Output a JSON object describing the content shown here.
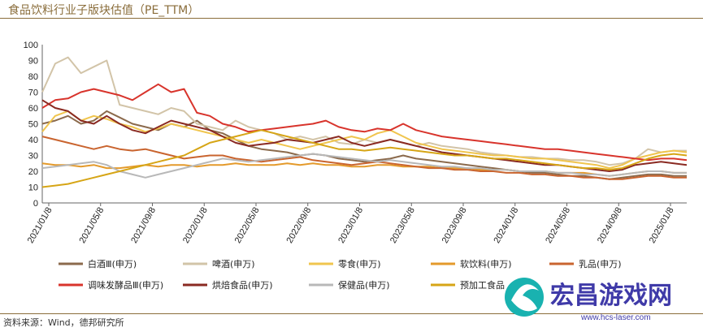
{
  "title": "食品饮料行业子版块估值（PE_TTM）",
  "source": "资料来源：Wind，德邦研究所",
  "watermark": {
    "name": "宏昌游戏网",
    "url": "www.hcs-laser.com"
  },
  "chart_data": {
    "type": "line",
    "ylim": [
      0,
      100
    ],
    "yticks": [
      0,
      10,
      20,
      30,
      40,
      50,
      60,
      70,
      80,
      90,
      100
    ],
    "xlim": [
      0,
      50
    ],
    "xticks": [
      "2021/01/8",
      "2021/05/8",
      "2021/09/8",
      "2022/01/8",
      "2022/05/8",
      "2022/09/8",
      "2023/01/8",
      "2023/05/8",
      "2023/09/8",
      "2024/01/8",
      "2024/05/8",
      "2024/09/8",
      "2025/01/8"
    ],
    "series": [
      {
        "name": "白酒Ⅲ(申万)",
        "color": "#8b6a4c",
        "values": [
          50,
          52,
          55,
          50,
          52,
          58,
          54,
          50,
          48,
          46,
          50,
          48,
          52,
          46,
          44,
          40,
          36,
          34,
          33,
          32,
          30,
          31,
          30,
          28,
          27,
          26,
          27,
          28,
          30,
          28,
          27,
          26,
          25,
          24,
          23,
          22,
          21,
          20,
          19,
          19,
          18,
          17,
          17,
          16,
          15,
          16,
          17,
          18,
          18,
          17,
          17
        ]
      },
      {
        "name": "啤酒(申万)",
        "color": "#d2c4a8",
        "values": [
          70,
          88,
          92,
          82,
          86,
          90,
          62,
          60,
          58,
          56,
          60,
          58,
          50,
          48,
          46,
          52,
          48,
          46,
          44,
          40,
          42,
          40,
          42,
          38,
          37,
          40,
          38,
          40,
          38,
          36,
          38,
          36,
          35,
          34,
          32,
          31,
          30,
          29,
          29,
          28,
          28,
          27,
          27,
          26,
          24,
          25,
          28,
          34,
          32,
          33,
          33
        ]
      },
      {
        "name": "零食(申万)",
        "color": "#f0c54e",
        "values": [
          45,
          55,
          58,
          52,
          55,
          53,
          50,
          48,
          45,
          47,
          50,
          48,
          46,
          44,
          42,
          40,
          38,
          40,
          38,
          36,
          34,
          36,
          38,
          40,
          42,
          40,
          44,
          46,
          42,
          38,
          36,
          34,
          33,
          32,
          31,
          30,
          30,
          29,
          28,
          28,
          27,
          26,
          25,
          24,
          22,
          24,
          28,
          30,
          32,
          33,
          32
        ]
      },
      {
        "name": "软饮料(申万)",
        "color": "#e49a2b",
        "values": [
          25,
          24,
          24,
          23,
          24,
          22,
          22,
          23,
          24,
          23,
          24,
          24,
          23,
          24,
          24,
          25,
          24,
          24,
          24,
          25,
          24,
          25,
          24,
          24,
          23,
          23,
          24,
          24,
          23,
          23,
          23,
          22,
          22,
          22,
          21,
          21,
          21,
          20,
          20,
          20,
          19,
          19,
          19,
          18,
          17,
          18,
          19,
          20,
          20,
          19,
          19
        ]
      },
      {
        "name": "乳品(申万)",
        "color": "#c9642f",
        "values": [
          42,
          40,
          38,
          36,
          34,
          36,
          34,
          33,
          34,
          32,
          30,
          28,
          29,
          30,
          30,
          28,
          27,
          26,
          27,
          28,
          29,
          27,
          26,
          25,
          24,
          25,
          26,
          25,
          24,
          23,
          22,
          22,
          21,
          21,
          20,
          20,
          19,
          19,
          18,
          18,
          17,
          17,
          16,
          16,
          15,
          15,
          16,
          17,
          17,
          16,
          16
        ]
      },
      {
        "name": "调味发酵品Ⅲ(申万)",
        "color": "#d8342c",
        "values": [
          60,
          65,
          66,
          70,
          72,
          70,
          68,
          65,
          70,
          75,
          70,
          72,
          57,
          55,
          50,
          48,
          45,
          46,
          47,
          48,
          49,
          50,
          52,
          48,
          46,
          45,
          47,
          46,
          50,
          46,
          44,
          42,
          41,
          40,
          39,
          38,
          37,
          36,
          35,
          34,
          34,
          33,
          32,
          31,
          30,
          29,
          28,
          27,
          28,
          28,
          27
        ]
      },
      {
        "name": "烘焙食品(申万)",
        "color": "#8a2a22",
        "values": [
          65,
          60,
          58,
          52,
          50,
          55,
          50,
          46,
          44,
          48,
          52,
          50,
          48,
          46,
          42,
          38,
          36,
          37,
          38,
          40,
          39,
          38,
          40,
          42,
          38,
          36,
          38,
          40,
          38,
          36,
          34,
          32,
          31,
          30,
          29,
          28,
          27,
          26,
          25,
          24,
          24,
          23,
          22,
          21,
          20,
          21,
          24,
          25,
          26,
          25,
          24
        ]
      },
      {
        "name": "保健品(申万)",
        "color": "#b8b8b8",
        "values": [
          22,
          23,
          24,
          25,
          26,
          24,
          20,
          18,
          16,
          18,
          20,
          22,
          24,
          26,
          28,
          27,
          26,
          27,
          28,
          29,
          30,
          31,
          30,
          29,
          28,
          27,
          26,
          27,
          26,
          25,
          24,
          23,
          23,
          22,
          22,
          21,
          21,
          20,
          20,
          20,
          19,
          19,
          18,
          18,
          17,
          18,
          19,
          20,
          20,
          19,
          19
        ]
      },
      {
        "name": "预加工食品",
        "color": "#d6a516",
        "values": [
          10,
          11,
          12,
          14,
          16,
          18,
          20,
          22,
          24,
          26,
          28,
          30,
          34,
          38,
          40,
          42,
          44,
          46,
          44,
          42,
          40,
          38,
          36,
          34,
          34,
          33,
          34,
          35,
          34,
          33,
          32,
          31,
          30,
          30,
          29,
          28,
          28,
          27,
          26,
          25,
          24,
          23,
          22,
          22,
          21,
          22,
          25,
          28,
          30,
          31,
          30
        ]
      }
    ],
    "legend_position": "bottom"
  }
}
